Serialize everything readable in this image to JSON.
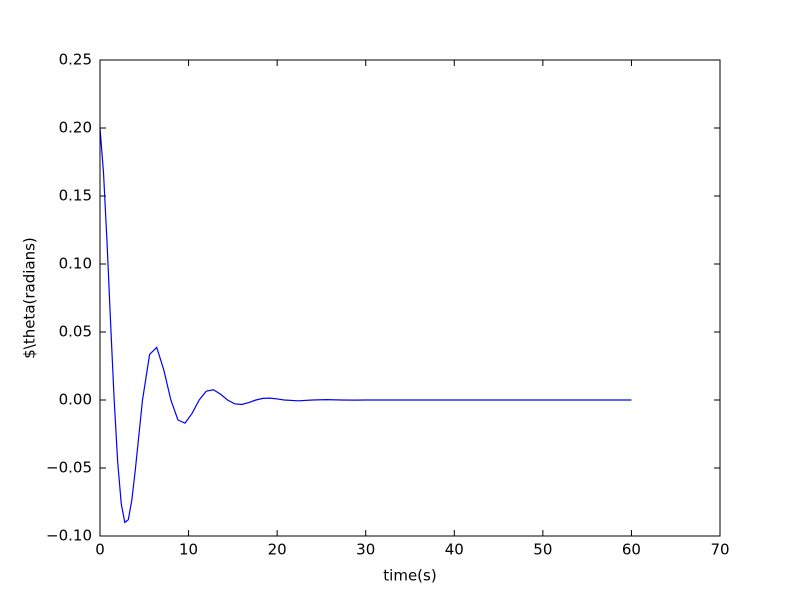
{
  "chart_data": {
    "type": "line",
    "xlabel": "time(s)",
    "ylabel": "$\\theta(radians)",
    "x": [
      0,
      0.4,
      0.8,
      1.2,
      1.6,
      2.0,
      2.4,
      2.8,
      3.2,
      3.6,
      4.0,
      4.8,
      5.6,
      6.4,
      7.2,
      8.0,
      8.8,
      9.6,
      10.4,
      11.2,
      12.0,
      12.8,
      13.6,
      14.4,
      15.2,
      16.0,
      16.8,
      17.6,
      18.4,
      19.2,
      20.0,
      20.8,
      22.4,
      24.0,
      25.6,
      27.2,
      28.8,
      30,
      40,
      50,
      60
    ],
    "series": [
      {
        "color": "#0000ff",
        "values": [
          0.2,
          0.1667,
          0.1151,
          0.0563,
          0.0,
          -0.0458,
          -0.0763,
          -0.09,
          -0.088,
          -0.0732,
          -0.0506,
          0.0,
          0.0335,
          0.0387,
          0.0222,
          0.0,
          -0.0147,
          -0.017,
          -0.0098,
          0.0,
          0.0065,
          0.0075,
          0.0043,
          0.0,
          -0.0028,
          -0.0033,
          -0.0019,
          0.0,
          0.0012,
          0.0014,
          0.0008,
          0.0,
          -0.0006,
          0.0,
          0.0003,
          0.0,
          -0.0001,
          0.0,
          0.0,
          0.0,
          0.0
        ]
      }
    ],
    "xlim": [
      0,
      70
    ],
    "xticks": [
      0,
      10,
      20,
      30,
      40,
      50,
      60,
      70
    ],
    "ylim": [
      -0.1,
      0.25
    ],
    "yticks": [
      {
        "value": -0.1,
        "label": "−0.10"
      },
      {
        "value": -0.05,
        "label": "−0.05"
      },
      {
        "value": 0,
        "label": "0.00"
      },
      0.05,
      {
        "value": 0.1,
        "label": "0.10"
      },
      0.15,
      {
        "value": 0.2,
        "label": "0.20"
      },
      0.25
    ],
    "grid": false
  }
}
